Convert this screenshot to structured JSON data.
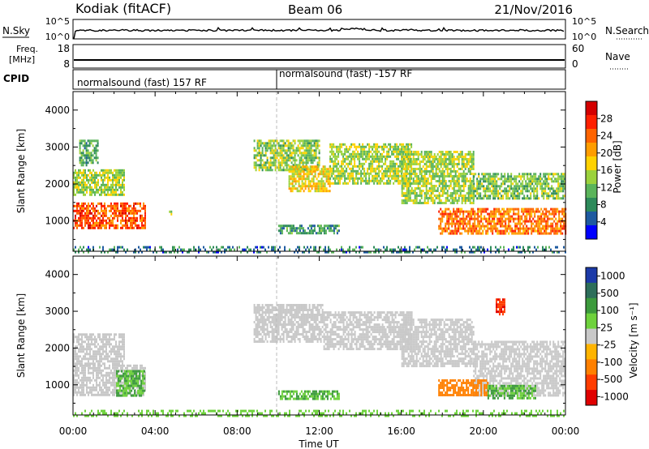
{
  "header": {
    "station": "Kodiak (fitACF)",
    "beam": "Beam 06",
    "date": "21/Nov/2016"
  },
  "panels": {
    "nsky": {
      "left_label": "N.Sky",
      "right_label": "N.Search",
      "left_ticks": [
        "10^5",
        "10^0"
      ],
      "right_ticks": [
        "10^5",
        "10^0"
      ]
    },
    "freq": {
      "left_label_top": "Freq.",
      "left_label_unit": "[MHz]",
      "right_label": "Nave",
      "left_ticks": [
        "18",
        "8"
      ],
      "right_ticks": [
        "60",
        "0"
      ]
    },
    "cpid": {
      "label": "CPID",
      "segments": [
        "normalsound (fast) 157 RF",
        "normalsound (fast) -157 RF"
      ]
    }
  },
  "power_colorbar": {
    "label": "Power [dB]",
    "ticks": [
      "28",
      "24",
      "20",
      "16",
      "12",
      "8",
      "4"
    ],
    "colors": [
      "#d40000",
      "#ff2000",
      "#ff6400",
      "#ff9d00",
      "#ffd200",
      "#9bd23c",
      "#5ab45a",
      "#2d8a5a",
      "#1e5aa0",
      "#0000ff"
    ]
  },
  "velocity_colorbar": {
    "label": "Velocity [m s⁻¹]",
    "ticks": [
      "1000",
      "500",
      "100",
      "25",
      "-25",
      "-100",
      "-500",
      "-1000"
    ],
    "colors": [
      "#1c3aa8",
      "#2d6e5a",
      "#3c9a3c",
      "#6ed23c",
      "#c8c8c8",
      "#ffb400",
      "#ff8000",
      "#ff3c00",
      "#e00000"
    ]
  },
  "chart_data": [
    {
      "type": "heatmap",
      "title": "Power",
      "xlabel": "Time UT",
      "ylabel": "Slant Range [km]",
      "x_ticks": [
        "00:00",
        "04:00",
        "08:00",
        "12:00",
        "16:00",
        "20:00",
        "00:00"
      ],
      "y_ticks": [
        "1000",
        "2000",
        "3000",
        "4000"
      ],
      "xlim_hours": [
        0,
        24
      ],
      "ylim_km": [
        180,
        4500
      ],
      "clim_db": [
        0,
        32
      ],
      "regions": [
        {
          "t": [
            0.0,
            3.5
          ],
          "r": [
            780,
            1500
          ],
          "value": 26
        },
        {
          "t": [
            0.0,
            2.5
          ],
          "r": [
            1700,
            2400
          ],
          "value": 14
        },
        {
          "t": [
            0.3,
            1.2
          ],
          "r": [
            2500,
            3200
          ],
          "value": 10
        },
        {
          "t": [
            4.6,
            5.0
          ],
          "r": [
            1180,
            1280
          ],
          "value": 12
        },
        {
          "t": [
            8.8,
            12.0
          ],
          "r": [
            2400,
            3200
          ],
          "value": 13
        },
        {
          "t": [
            10.5,
            12.5
          ],
          "r": [
            1800,
            2500
          ],
          "value": 18
        },
        {
          "t": [
            12.5,
            16.5
          ],
          "r": [
            2000,
            3100
          ],
          "value": 14
        },
        {
          "t": [
            10.0,
            13.0
          ],
          "r": [
            650,
            900
          ],
          "value": 8
        },
        {
          "t": [
            16.0,
            19.5
          ],
          "r": [
            1500,
            2900
          ],
          "value": 14
        },
        {
          "t": [
            17.8,
            24.0
          ],
          "r": [
            650,
            1350
          ],
          "value": 24
        },
        {
          "t": [
            19.5,
            24.0
          ],
          "r": [
            1600,
            2300
          ],
          "value": 12
        },
        {
          "t": [
            0.0,
            24.0
          ],
          "r": [
            180,
            320
          ],
          "value": 6
        }
      ]
    },
    {
      "type": "heatmap",
      "title": "Velocity",
      "xlabel": "Time UT",
      "ylabel": "Slant Range [km]",
      "x_ticks": [
        "00:00",
        "04:00",
        "08:00",
        "12:00",
        "16:00",
        "20:00",
        "00:00"
      ],
      "y_ticks": [
        "1000",
        "2000",
        "3000",
        "4000"
      ],
      "xlim_hours": [
        0,
        24
      ],
      "ylim_km": [
        180,
        4500
      ],
      "regions": [
        {
          "t": [
            0.0,
            3.5
          ],
          "r": [
            750,
            1550
          ],
          "value": 0
        },
        {
          "t": [
            2.1,
            3.5
          ],
          "r": [
            700,
            1400
          ],
          "value": 60
        },
        {
          "t": [
            0.0,
            2.5
          ],
          "r": [
            1600,
            2400
          ],
          "value": 20
        },
        {
          "t": [
            8.8,
            12.2
          ],
          "r": [
            2200,
            3200
          ],
          "value": 0
        },
        {
          "t": [
            12.2,
            16.5
          ],
          "r": [
            2000,
            3000
          ],
          "value": 0
        },
        {
          "t": [
            16.0,
            19.5
          ],
          "r": [
            1500,
            2800
          ],
          "value": 0
        },
        {
          "t": [
            19.5,
            24.0
          ],
          "r": [
            700,
            2200
          ],
          "value": 0
        },
        {
          "t": [
            17.8,
            20.2
          ],
          "r": [
            700,
            1150
          ],
          "value": -150
        },
        {
          "t": [
            20.2,
            22.5
          ],
          "r": [
            650,
            1000
          ],
          "value": 60
        },
        {
          "t": [
            10.0,
            13.0
          ],
          "r": [
            650,
            850
          ],
          "value": 60
        },
        {
          "t": [
            20.6,
            21.0
          ],
          "r": [
            2900,
            3350
          ],
          "value": -700
        },
        {
          "t": [
            0.0,
            24.0
          ],
          "r": [
            180,
            320
          ],
          "value": 50
        }
      ]
    }
  ]
}
